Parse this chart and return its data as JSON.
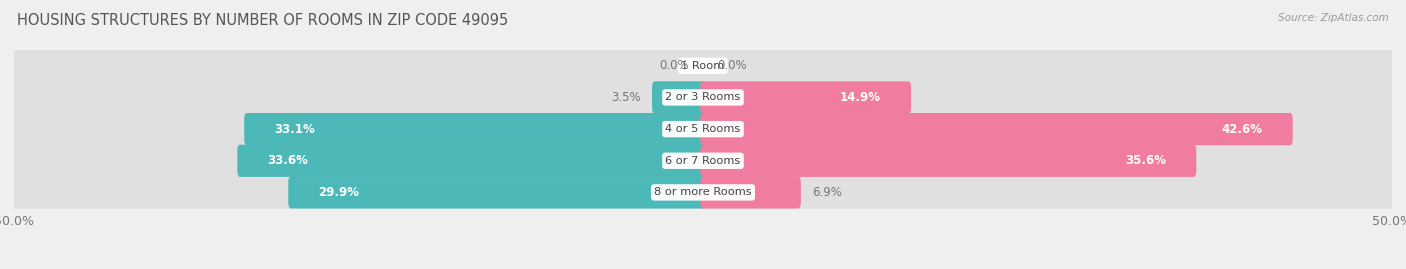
{
  "title": "HOUSING STRUCTURES BY NUMBER OF ROOMS IN ZIP CODE 49095",
  "source": "Source: ZipAtlas.com",
  "categories": [
    "1 Room",
    "2 or 3 Rooms",
    "4 or 5 Rooms",
    "6 or 7 Rooms",
    "8 or more Rooms"
  ],
  "owner_values": [
    0.0,
    3.5,
    33.1,
    33.6,
    29.9
  ],
  "renter_values": [
    0.0,
    14.9,
    42.6,
    35.6,
    6.9
  ],
  "owner_color": "#4db8b8",
  "renter_color": "#f07ca0",
  "axis_max": 50.0,
  "background_color": "#efefef",
  "bar_bg_color": "#e0e0e0",
  "row_bg_colors": [
    "#e8e8e8",
    "#dedede"
  ],
  "title_font_size": 10.5,
  "bar_height": 0.62,
  "inner_threshold": 8.0
}
